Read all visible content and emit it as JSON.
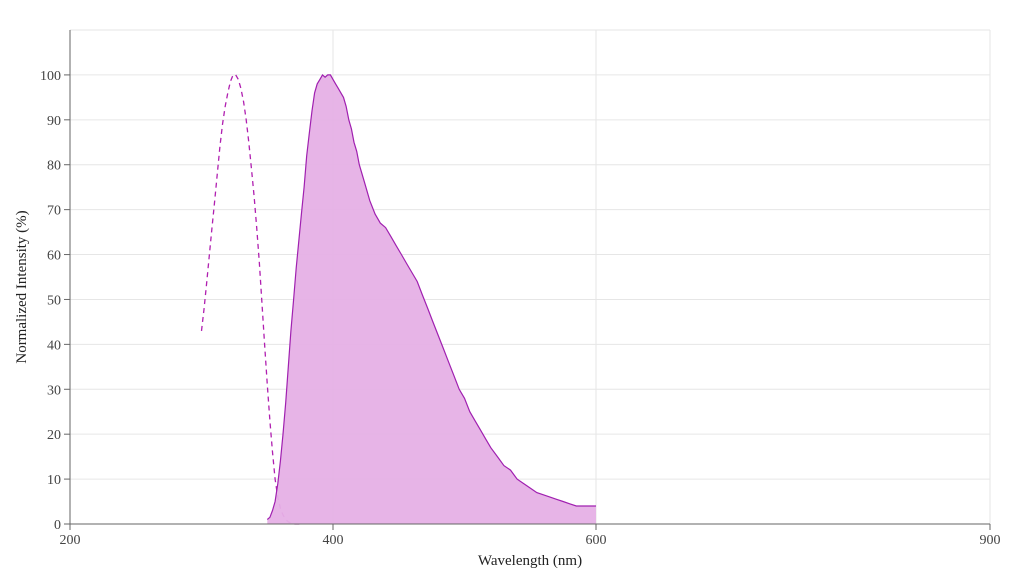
{
  "chart_data": {
    "type": "area",
    "xlabel": "Wavelength (nm)",
    "ylabel": "Normalized Intensity (%)",
    "xlim": [
      200,
      900
    ],
    "ylim": [
      0,
      110
    ],
    "x_ticks": [
      200,
      400,
      600,
      900
    ],
    "y_ticks": [
      0,
      10,
      20,
      30,
      40,
      50,
      60,
      70,
      80,
      90,
      100
    ],
    "grid": true,
    "legend": "none",
    "series": [
      {
        "style": "dashed-line",
        "color": "#b01fb0",
        "points": [
          [
            300,
            43
          ],
          [
            302,
            48
          ],
          [
            304,
            54
          ],
          [
            306,
            60
          ],
          [
            308,
            66
          ],
          [
            310,
            72
          ],
          [
            312,
            78
          ],
          [
            314,
            84
          ],
          [
            316,
            89
          ],
          [
            318,
            93
          ],
          [
            320,
            96
          ],
          [
            322,
            98.5
          ],
          [
            324,
            100
          ],
          [
            326,
            100
          ],
          [
            328,
            99
          ],
          [
            330,
            97
          ],
          [
            332,
            94
          ],
          [
            334,
            90
          ],
          [
            336,
            85
          ],
          [
            338,
            79
          ],
          [
            340,
            73
          ],
          [
            342,
            66
          ],
          [
            344,
            58
          ],
          [
            346,
            49
          ],
          [
            348,
            40
          ],
          [
            350,
            31
          ],
          [
            352,
            23
          ],
          [
            354,
            16
          ],
          [
            356,
            10
          ],
          [
            358,
            6
          ],
          [
            360,
            3.5
          ],
          [
            362,
            2
          ],
          [
            364,
            1
          ],
          [
            366,
            0.5
          ],
          [
            368,
            0.2
          ],
          [
            370,
            0
          ],
          [
            375,
            0
          ]
        ]
      },
      {
        "style": "filled-area",
        "color": "#a020b0",
        "fill": "#e6b0e6",
        "points": [
          [
            350,
            1
          ],
          [
            352,
            1.5
          ],
          [
            354,
            3
          ],
          [
            356,
            5
          ],
          [
            358,
            9
          ],
          [
            360,
            14
          ],
          [
            362,
            20
          ],
          [
            364,
            27
          ],
          [
            366,
            35
          ],
          [
            368,
            43
          ],
          [
            370,
            50
          ],
          [
            372,
            57
          ],
          [
            374,
            63
          ],
          [
            376,
            69
          ],
          [
            378,
            75
          ],
          [
            380,
            82
          ],
          [
            382,
            87
          ],
          [
            384,
            92
          ],
          [
            386,
            96
          ],
          [
            388,
            98
          ],
          [
            390,
            99
          ],
          [
            392,
            100
          ],
          [
            394,
            99.5
          ],
          [
            396,
            100
          ],
          [
            398,
            100
          ],
          [
            400,
            99
          ],
          [
            402,
            98
          ],
          [
            404,
            97
          ],
          [
            406,
            96
          ],
          [
            408,
            95
          ],
          [
            410,
            93
          ],
          [
            412,
            90
          ],
          [
            414,
            88
          ],
          [
            416,
            85
          ],
          [
            418,
            83
          ],
          [
            420,
            80
          ],
          [
            424,
            76
          ],
          [
            428,
            72
          ],
          [
            432,
            69
          ],
          [
            436,
            67
          ],
          [
            440,
            66
          ],
          [
            444,
            64
          ],
          [
            448,
            62
          ],
          [
            452,
            60
          ],
          [
            456,
            58
          ],
          [
            460,
            56
          ],
          [
            464,
            54
          ],
          [
            468,
            51
          ],
          [
            472,
            48
          ],
          [
            476,
            45
          ],
          [
            480,
            42
          ],
          [
            484,
            39
          ],
          [
            488,
            36
          ],
          [
            492,
            33
          ],
          [
            496,
            30
          ],
          [
            500,
            28
          ],
          [
            504,
            25
          ],
          [
            508,
            23
          ],
          [
            512,
            21
          ],
          [
            516,
            19
          ],
          [
            520,
            17
          ],
          [
            525,
            15
          ],
          [
            530,
            13
          ],
          [
            535,
            12
          ],
          [
            540,
            10
          ],
          [
            545,
            9
          ],
          [
            550,
            8
          ],
          [
            555,
            7
          ],
          [
            560,
            6.5
          ],
          [
            565,
            6
          ],
          [
            570,
            5.5
          ],
          [
            575,
            5
          ],
          [
            580,
            4.5
          ],
          [
            585,
            4
          ],
          [
            590,
            4
          ],
          [
            595,
            4
          ],
          [
            600,
            4
          ]
        ]
      }
    ]
  }
}
